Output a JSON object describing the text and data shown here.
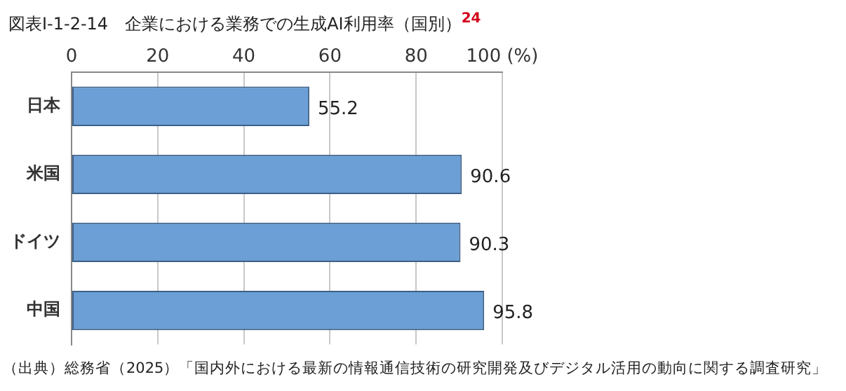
{
  "chart_data": {
    "type": "bar",
    "orientation": "horizontal",
    "title": "図表Ⅰ-1-2-14　企業における業務での生成AI利用率（国別）$^{24}$",
    "categories": [
      "日本",
      "米国",
      "ドイツ",
      "中国"
    ],
    "values": [
      55.2,
      90.6,
      90.3,
      95.8
    ],
    "color": "#6b9fd6",
    "xlim": [
      0,
      100
    ],
    "xticks": [
      0,
      20,
      40,
      60,
      80,
      {
        "value": 100,
        "label": "100 (%)"
      }
    ],
    "grid": "x",
    "data_labels": true,
    "legend": false,
    "annotations": [
      "（出典）総務省（2025）「国内外における最新の情報通信技術の研究開発及びデジタル活用の動向に関する調査研究」"
    ]
  }
}
